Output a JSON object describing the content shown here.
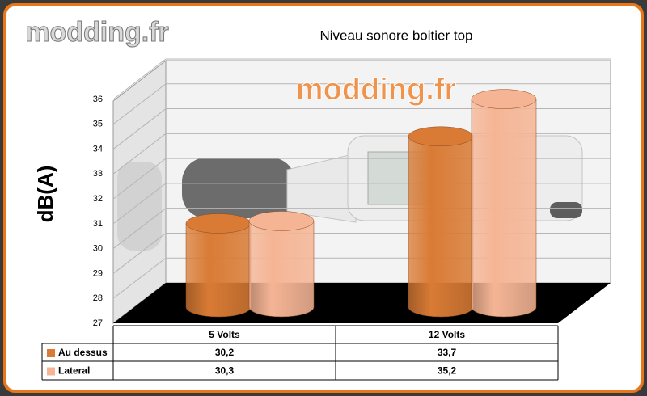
{
  "watermark": "modding.fr",
  "chart_data": {
    "type": "bar3d",
    "title": "Niveau sonore boitier top",
    "ylabel": "dB(A)",
    "categories": [
      "5 Volts",
      "12 Volts"
    ],
    "series": [
      {
        "name": "Au dessus",
        "color": "#d97b35",
        "values": [
          30.2,
          33.7
        ],
        "value_labels": [
          "30,2",
          "33,7"
        ]
      },
      {
        "name": "Lateral",
        "color": "#f5b595",
        "values": [
          30.3,
          35.2
        ],
        "value_labels": [
          "30,3",
          "35,2"
        ]
      }
    ],
    "ylim": [
      27,
      36
    ],
    "yticks": [
      27,
      28,
      29,
      30,
      31,
      32,
      33,
      34,
      35,
      36
    ],
    "grid": true
  }
}
